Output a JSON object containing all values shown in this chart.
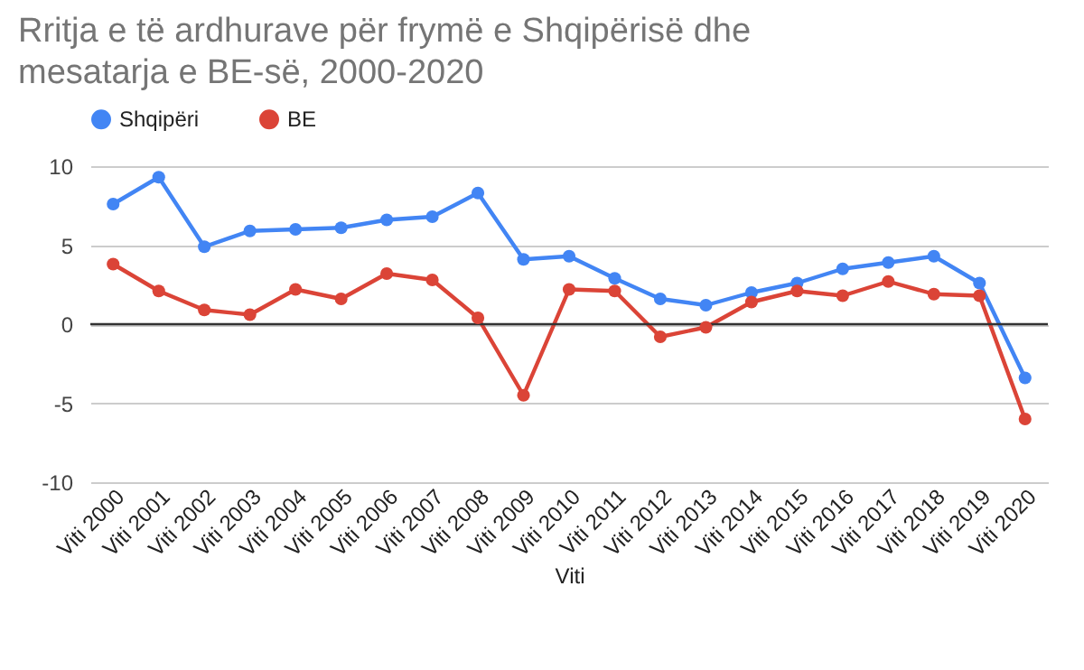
{
  "chart_data": {
    "type": "line",
    "title": "Rritja e të ardhurave për frymë e Shqipërisë dhe mesatarja e BE-së, 2000-2020",
    "xlabel": "Viti",
    "categories": [
      "Viti 2000",
      "Viti 2001",
      "Viti 2002",
      "Viti 2003",
      "Viti 2004",
      "Viti 2005",
      "Viti 2006",
      "Viti 2007",
      "Viti 2008",
      "Viti 2009",
      "Viti 2010",
      "Viti 2011",
      "Viti 2012",
      "Viti 2013",
      "Viti 2014",
      "Viti 2015",
      "Viti 2016",
      "Viti 2017",
      "Viti 2018",
      "Viti 2019",
      "Viti 2020"
    ],
    "series": [
      {
        "name": "Shqipëri",
        "color": "#4285f4",
        "values": [
          7.6,
          9.3,
          4.9,
          5.9,
          6.0,
          6.1,
          6.6,
          6.8,
          8.3,
          4.1,
          4.3,
          2.9,
          1.6,
          1.2,
          2.0,
          2.6,
          3.5,
          3.9,
          4.3,
          2.6,
          -3.4
        ]
      },
      {
        "name": "BE",
        "color": "#db4437",
        "values": [
          3.8,
          2.1,
          0.9,
          0.6,
          2.2,
          1.6,
          3.2,
          2.8,
          0.4,
          -4.5,
          2.2,
          2.1,
          -0.8,
          -0.2,
          1.4,
          2.1,
          1.8,
          2.7,
          1.9,
          1.8,
          -6.0
        ]
      }
    ],
    "ylim": [
      -10,
      10
    ],
    "yticks": [
      -10,
      -5,
      0,
      5,
      10
    ],
    "grid": "y",
    "legend": "top",
    "marker": "circle",
    "line_style": "solid",
    "ref_lines": [
      {
        "axis": "y",
        "value": 0,
        "color": "#333333"
      }
    ]
  }
}
